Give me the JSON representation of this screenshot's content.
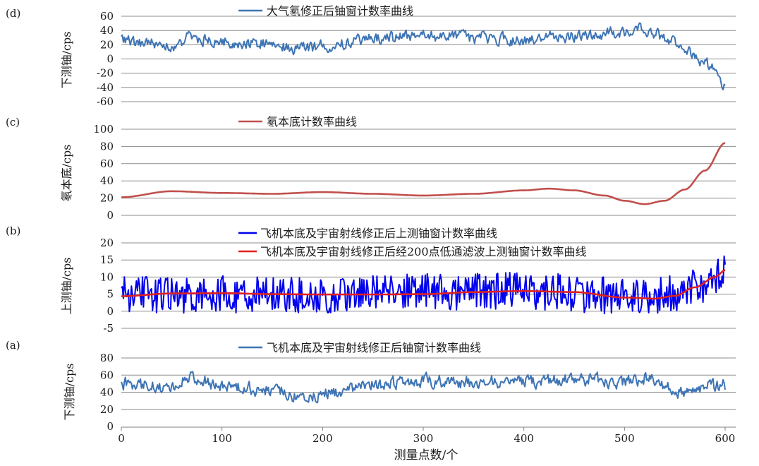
{
  "figure": {
    "xlabel": "测量点数/个",
    "xticks": [
      "0",
      "100",
      "200",
      "300",
      "400",
      "500",
      "600"
    ],
    "xlim": [
      0,
      600
    ]
  },
  "chart_data": [
    {
      "panel": "(d)",
      "type": "line",
      "ylabel": "下测铀/cps",
      "ylim": [
        -60,
        60
      ],
      "yticks": [
        "-60",
        "-40",
        "-20",
        "0",
        "20",
        "40",
        "60"
      ],
      "grid": true,
      "legend_position": "top-center",
      "series": [
        {
          "name": "大气氡修正后铀窗计数率曲线",
          "color": "#3e74b4",
          "noise_amp": 10,
          "noise_seed": 11,
          "x": [
            0,
            20,
            50,
            70,
            100,
            140,
            180,
            200,
            250,
            300,
            350,
            400,
            430,
            460,
            500,
            520,
            540,
            560,
            580,
            600
          ],
          "values": [
            28,
            22,
            18,
            30,
            24,
            22,
            14,
            18,
            28,
            32,
            30,
            26,
            30,
            33,
            38,
            42,
            30,
            15,
            -5,
            -35
          ]
        }
      ]
    },
    {
      "panel": "(c)",
      "type": "line",
      "ylabel": "氡本底/cps",
      "ylim": [
        0,
        100
      ],
      "yticks": [
        "0",
        "20",
        "40",
        "60",
        "80",
        "100"
      ],
      "grid": true,
      "legend_position": "top-center",
      "series": [
        {
          "name": "氡本底计数率曲线",
          "color": "#c0504d",
          "noise_amp": 0,
          "x": [
            0,
            50,
            100,
            150,
            200,
            250,
            300,
            350,
            400,
            425,
            450,
            480,
            500,
            520,
            540,
            560,
            580,
            600
          ],
          "values": [
            21,
            28,
            26,
            25,
            27,
            25,
            23,
            25,
            29,
            31,
            29,
            23,
            17,
            13,
            17,
            30,
            52,
            84
          ]
        }
      ]
    },
    {
      "panel": "(b)",
      "type": "line",
      "ylabel": "上测铀/cps",
      "ylim": [
        -5,
        20
      ],
      "yticks": [
        "-5",
        "0",
        "5",
        "10",
        "15",
        "20"
      ],
      "grid": true,
      "legend_position": "top-center",
      "series": [
        {
          "name": "飞机本底及宇宙射线修正后上测铀窗计数率曲线",
          "color": "#0000ee",
          "noise_amp": 5.5,
          "noise_seed": 7,
          "clip_min": -1.5,
          "x": [
            0,
            100,
            200,
            300,
            400,
            500,
            540,
            560,
            580,
            598,
            600
          ],
          "values": [
            5,
            5,
            5,
            5.5,
            6,
            4.5,
            5,
            6,
            8,
            11,
            17
          ]
        },
        {
          "name": "飞机本底及宇宙射线修正后经200点低通滤波上测铀窗计数率曲线",
          "color": "#e02020",
          "noise_amp": 0,
          "x": [
            0,
            50,
            100,
            150,
            200,
            250,
            300,
            350,
            400,
            450,
            500,
            530,
            550,
            570,
            590,
            600
          ],
          "values": [
            4.4,
            5.2,
            5.3,
            5.0,
            4.9,
            4.9,
            5.0,
            5.6,
            5.9,
            5.6,
            4.0,
            3.7,
            4.5,
            7.0,
            10.0,
            12.0
          ]
        }
      ]
    },
    {
      "panel": "(a)",
      "type": "line",
      "ylabel": "下测铀/cps",
      "ylim": [
        0,
        80
      ],
      "yticks": [
        "0",
        "20",
        "40",
        "60",
        "80"
      ],
      "grid": true,
      "legend_position": "top-center",
      "series": [
        {
          "name": "飞机本底及宇宙射线修正后铀窗计数率曲线",
          "color": "#3e74b4",
          "noise_amp": 9,
          "noise_seed": 3,
          "x": [
            0,
            50,
            70,
            100,
            150,
            185,
            200,
            250,
            300,
            350,
            400,
            450,
            500,
            525,
            550,
            570,
            600
          ],
          "values": [
            50,
            45,
            58,
            47,
            43,
            33,
            38,
            48,
            54,
            52,
            52,
            55,
            52,
            58,
            42,
            44,
            48
          ]
        }
      ]
    }
  ]
}
